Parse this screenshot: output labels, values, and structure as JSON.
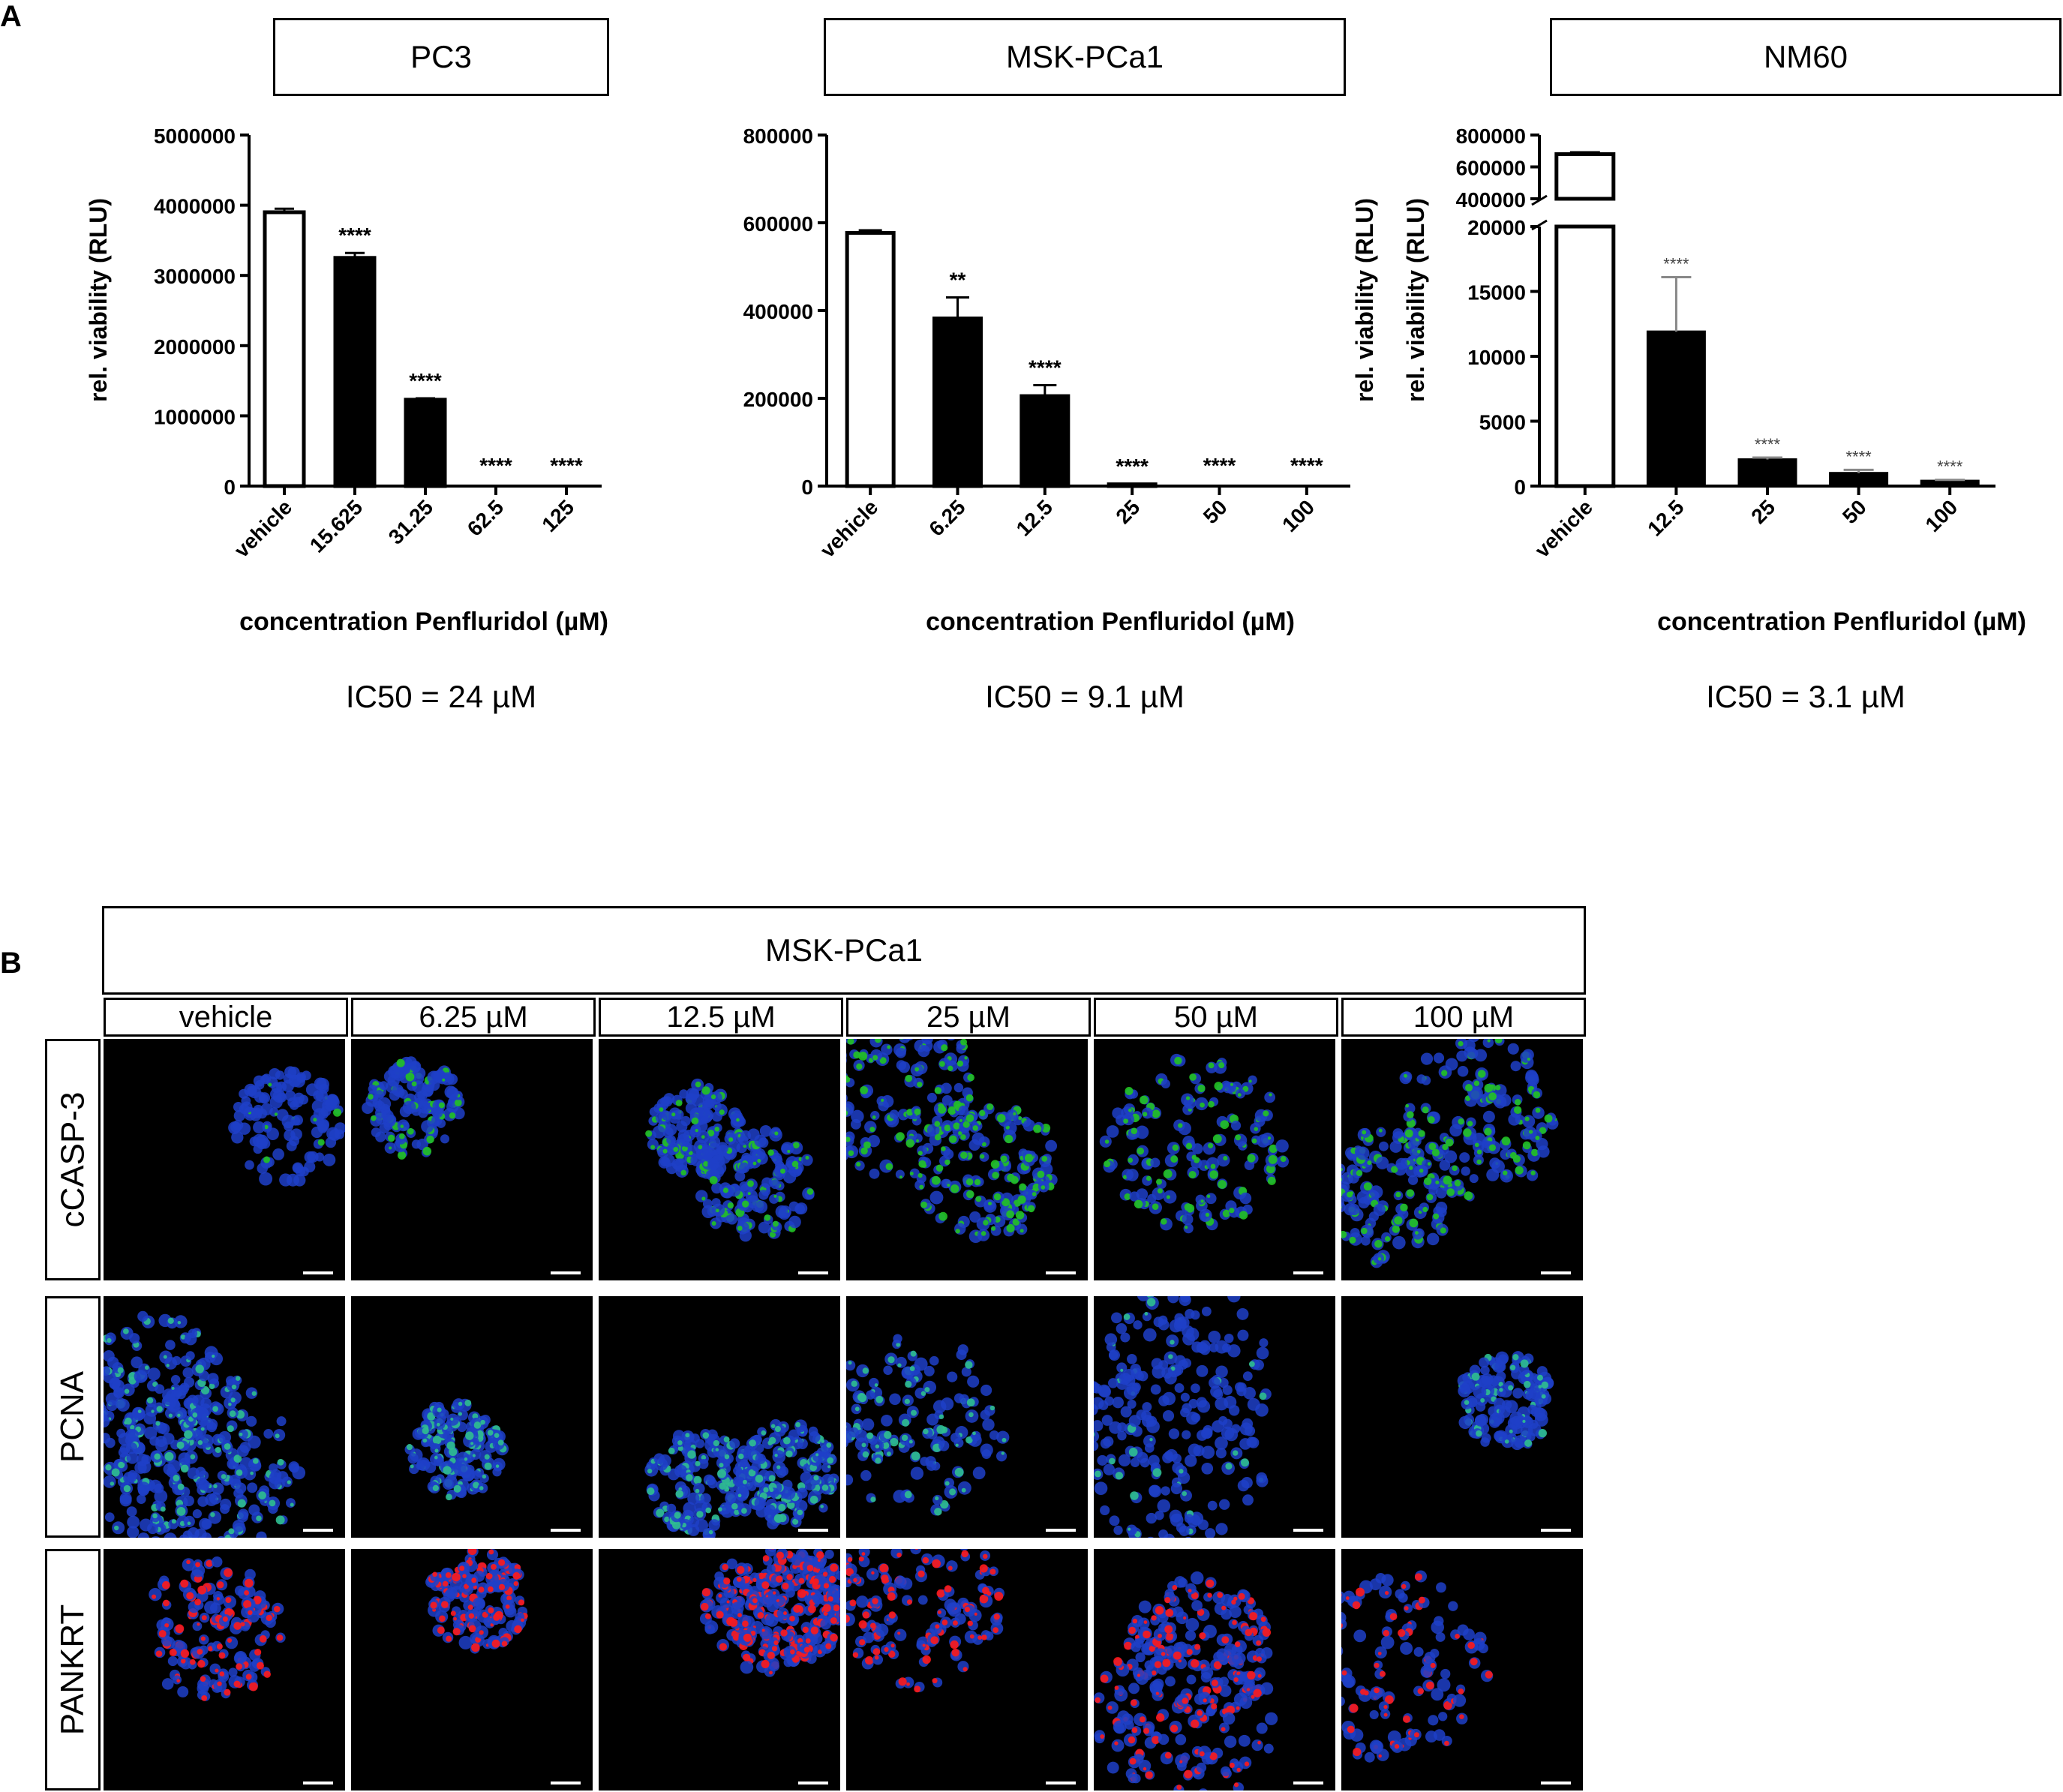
{
  "panel_a_letter": "A",
  "panel_b_letter": "B",
  "charts": [
    {
      "id": "pc3",
      "cell_line": "PC3",
      "ic50": "IC50 = 24 µM",
      "ylabel": "rel. viability (RLU)",
      "xlabel": "concentration Penfluridol (µM)"
    },
    {
      "id": "msk",
      "cell_line": "MSK-PCa1",
      "ic50": "IC50 = 9.1 µM",
      "ylabel": "rel. viability (RLU)",
      "xlabel": "concentration Penfluridol (µM)"
    },
    {
      "id": "nm60",
      "cell_line": "NM60",
      "ic50": "IC50 = 3.1 µM",
      "ylabel": "rel. viability (RLU)",
      "xlabel": "concentration Penfluridol (µM)"
    }
  ],
  "chart_data": [
    {
      "type": "bar",
      "title": "PC3",
      "xlabel": "concentration Penfluridol (µM)",
      "ylabel": "rel. viability (RLU)",
      "categories": [
        "vehicle",
        "15.625",
        "31.25",
        "62.5",
        "125"
      ],
      "values": [
        3900000,
        3250000,
        1230000,
        0,
        0
      ],
      "errors": [
        50000,
        70000,
        20000,
        0,
        0
      ],
      "significance": [
        "",
        "****",
        "****",
        "****",
        "****"
      ],
      "ylim": [
        0,
        5000000
      ],
      "yticks": [
        0,
        1000000,
        2000000,
        3000000,
        4000000,
        5000000
      ],
      "ytick_labels": [
        "0",
        "1000000",
        "2000000",
        "3000000",
        "4000000",
        "5000000"
      ],
      "bar_colors": [
        "#ffffff",
        "#000000",
        "#000000",
        "#000000",
        "#000000"
      ]
    },
    {
      "type": "bar",
      "title": "MSK-PCa1",
      "xlabel": "concentration Penfluridol (µM)",
      "ylabel": "rel. viability (RLU)",
      "categories": [
        "vehicle",
        "6.25",
        "12.5",
        "25",
        "50",
        "100"
      ],
      "values": [
        577000,
        382000,
        205000,
        4000,
        0,
        0
      ],
      "errors": [
        6000,
        48000,
        25000,
        1000,
        0,
        0
      ],
      "significance": [
        "",
        "**",
        "****",
        "****",
        "****",
        "****"
      ],
      "ylim": [
        0,
        800000
      ],
      "yticks": [
        0,
        200000,
        400000,
        600000,
        800000
      ],
      "ytick_labels": [
        "0",
        "200000",
        "400000",
        "600000",
        "800000"
      ],
      "bar_colors": [
        "#ffffff",
        "#000000",
        "#000000",
        "#000000",
        "#000000",
        "#000000"
      ]
    },
    {
      "type": "bar",
      "title": "NM60",
      "xlabel": "concentration Penfluridol (µM)",
      "ylabel": "rel. viability (RLU)",
      "categories": [
        "vehicle",
        "12.5",
        "25",
        "50",
        "100"
      ],
      "values": [
        680000,
        11900,
        2050,
        1000,
        400
      ],
      "errors": [
        12000,
        4200,
        150,
        250,
        80
      ],
      "significance": [
        "",
        "****",
        "****",
        "****",
        "****"
      ],
      "broken_axis": true,
      "ylim_lower": [
        0,
        20000
      ],
      "ylim_upper": [
        400000,
        800000
      ],
      "yticks_lower": [
        0,
        5000,
        10000,
        15000,
        20000
      ],
      "ytick_labels_lower": [
        "0",
        "5000",
        "10000",
        "15000",
        "20000"
      ],
      "yticks_upper": [
        400000,
        600000,
        800000
      ],
      "ytick_labels_upper": [
        "400000",
        "600000",
        "800000"
      ],
      "bar_colors": [
        "#ffffff",
        "#000000",
        "#000000",
        "#000000",
        "#000000"
      ]
    }
  ],
  "panel_b": {
    "header": "MSK-PCa1",
    "columns": [
      "vehicle",
      "6.25 µM",
      "12.5 µM",
      "25 µM",
      "50 µM",
      "100 µM"
    ],
    "rows": [
      {
        "label": "cCASP-3",
        "stain_color": "#22c322",
        "levels": [
          0.1,
          0.3,
          0.55,
          0.85,
          0.8,
          0.75
        ]
      },
      {
        "label": "PCNA",
        "stain_color": "#2fbf8f",
        "levels": [
          0.5,
          0.85,
          0.7,
          0.6,
          0.2,
          0.35
        ]
      },
      {
        "label": "PANKRT",
        "stain_color": "#ff1a1a",
        "levels": [
          0.8,
          0.9,
          0.9,
          0.9,
          0.6,
          0.55
        ]
      }
    ]
  }
}
